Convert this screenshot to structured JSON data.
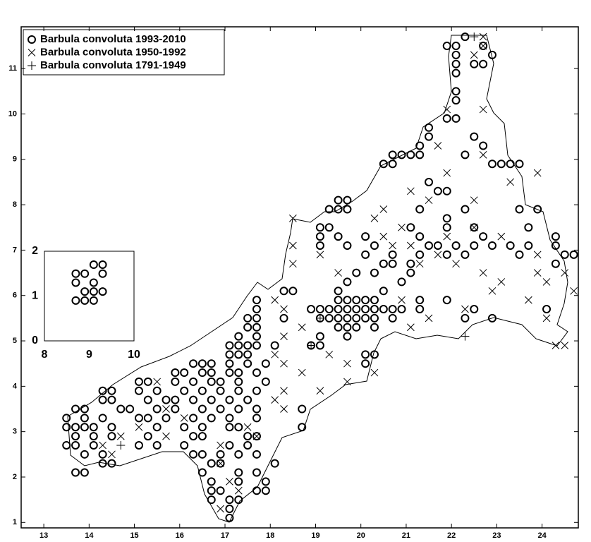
{
  "chart_data": [
    {
      "type": "scatter",
      "xlim": [
        12.5,
        24.8
      ],
      "ylim": [
        0.88,
        11.92
      ],
      "xticks": [
        13,
        14,
        15,
        16,
        17,
        18,
        19,
        20,
        21,
        22,
        23,
        24
      ],
      "yticks": [
        1,
        2,
        3,
        4,
        5,
        6,
        7,
        8,
        9,
        10,
        11
      ],
      "legend": "upper left",
      "series": [
        {
          "name": "Barbula convoluta 1993-2010",
          "color": "#000000",
          "marker": "circle",
          "x": [
            22.3,
            21.9,
            22.1,
            22.7,
            22.1,
            22.9,
            22.1,
            22.5,
            22.7,
            22.1,
            22.1,
            22.1,
            21.9,
            22.1,
            21.5,
            21.5,
            22.5,
            21.3,
            22.7,
            20.7,
            20.9,
            21.1,
            21.3,
            22.3,
            20.5,
            20.7,
            22.9,
            23.1,
            23.3,
            23.5,
            21.5,
            21.7,
            21.9,
            19.5,
            19.7,
            19.3,
            19.5,
            19.7,
            21.3,
            22.3,
            23.5,
            23.9,
            21.9,
            19.1,
            19.3,
            21.1,
            21.9,
            22.5,
            23.7,
            19.1,
            19.5,
            20.1,
            21.3,
            22.7,
            24.3,
            19.1,
            19.7,
            20.3,
            21.5,
            21.7,
            22.1,
            22.5,
            22.9,
            23.3,
            23.7,
            24.3,
            20.1,
            20.7,
            21.3,
            21.9,
            22.3,
            23.5,
            24.5,
            24.7,
            20.5,
            20.7,
            21.1,
            24.3,
            19.9,
            20.3,
            21.1,
            19.7,
            20.9,
            18.3,
            18.5,
            19.5,
            20.5,
            17.7,
            19.5,
            19.7,
            19.9,
            20.1,
            20.3,
            21.3,
            21.9,
            17.7,
            18.9,
            19.1,
            19.3,
            19.5,
            19.7,
            19.9,
            20.1,
            20.3,
            20.5,
            20.7,
            20.9,
            21.3,
            22.5,
            24.1,
            17.5,
            17.7,
            18.3,
            19.1,
            19.3,
            19.5,
            19.7,
            19.9,
            20.1,
            20.3,
            20.7,
            22.3,
            22.9,
            17.5,
            17.7,
            19.5,
            19.7,
            19.9,
            20.3,
            17.3,
            17.7,
            19.1,
            19.7,
            17.1,
            17.3,
            17.5,
            17.7,
            18.1,
            18.9,
            19.1,
            17.1,
            17.3,
            17.5,
            20.1,
            20.3,
            16.3,
            16.5,
            16.7,
            17.1,
            17.5,
            17.9,
            20.1,
            15.9,
            16.1,
            16.5,
            16.7,
            17.1,
            17.3,
            17.7,
            15.1,
            15.3,
            15.9,
            16.3,
            16.7,
            16.9,
            17.3,
            17.9,
            14.3,
            14.5,
            15.1,
            15.5,
            16.1,
            16.5,
            16.9,
            17.3,
            17.7,
            14.3,
            14.5,
            15.3,
            15.7,
            15.9,
            16.3,
            16.7,
            17.1,
            17.5,
            13.7,
            13.9,
            14.7,
            14.9,
            15.5,
            15.9,
            16.5,
            16.9,
            17.3,
            17.7,
            18.7,
            13.5,
            13.9,
            14.3,
            15.1,
            15.3,
            15.7,
            16.3,
            16.7,
            17.1,
            17.7,
            13.5,
            13.7,
            13.9,
            14.1,
            14.5,
            15.5,
            16.1,
            16.5,
            17.1,
            17.3,
            18.7,
            13.7,
            14.1,
            14.5,
            15.3,
            16.3,
            16.5,
            17.5,
            17.7,
            13.5,
            13.7,
            14.1,
            15.1,
            15.5,
            16.1,
            17.1,
            17.5,
            13.9,
            14.3,
            16.3,
            16.5,
            16.9,
            17.3,
            17.7,
            14.3,
            14.5,
            16.7,
            16.9,
            18.1,
            13.7,
            13.9,
            16.5,
            17.3,
            17.7,
            16.7,
            17.3,
            17.9,
            16.7,
            16.9,
            17.7,
            17.9,
            16.7,
            17.1,
            17.3,
            17.1,
            17.1
          ],
          "values": [
            11.7,
            11.5,
            11.5,
            11.5,
            11.3,
            11.3,
            11.1,
            11.1,
            11.1,
            10.9,
            10.5,
            10.3,
            9.9,
            9.9,
            9.7,
            9.5,
            9.5,
            9.3,
            9.3,
            9.1,
            9.1,
            9.1,
            9.1,
            9.1,
            8.9,
            8.9,
            8.9,
            8.9,
            8.9,
            8.9,
            8.5,
            8.3,
            8.3,
            8.1,
            8.1,
            7.9,
            7.9,
            7.9,
            7.9,
            7.9,
            7.9,
            7.9,
            7.7,
            7.5,
            7.5,
            7.5,
            7.5,
            7.5,
            7.5,
            7.3,
            7.3,
            7.3,
            7.3,
            7.3,
            7.3,
            7.1,
            7.1,
            7.1,
            7.1,
            7.1,
            7.1,
            7.1,
            7.1,
            7.1,
            7.1,
            7.1,
            6.9,
            6.9,
            6.9,
            6.9,
            6.9,
            6.9,
            6.9,
            6.9,
            6.7,
            6.7,
            6.7,
            6.7,
            6.5,
            6.5,
            6.5,
            6.3,
            6.3,
            6.1,
            6.1,
            6.1,
            6.1,
            5.9,
            5.9,
            5.9,
            5.9,
            5.9,
            5.9,
            5.9,
            5.9,
            5.7,
            5.7,
            5.7,
            5.7,
            5.7,
            5.7,
            5.7,
            5.7,
            5.7,
            5.7,
            5.7,
            5.7,
            5.7,
            5.7,
            5.7,
            5.5,
            5.5,
            5.5,
            5.5,
            5.5,
            5.5,
            5.5,
            5.5,
            5.5,
            5.5,
            5.5,
            5.5,
            5.5,
            5.3,
            5.3,
            5.3,
            5.3,
            5.3,
            5.3,
            5.1,
            5.1,
            5.1,
            5.1,
            4.9,
            4.9,
            4.9,
            4.9,
            4.9,
            4.9,
            4.9,
            4.7,
            4.7,
            4.7,
            4.7,
            4.7,
            4.5,
            4.5,
            4.5,
            4.5,
            4.5,
            4.5,
            4.5,
            4.3,
            4.3,
            4.3,
            4.3,
            4.3,
            4.3,
            4.3,
            4.1,
            4.1,
            4.1,
            4.1,
            4.1,
            4.1,
            4.1,
            4.1,
            3.9,
            3.9,
            3.9,
            3.9,
            3.9,
            3.9,
            3.9,
            3.9,
            3.9,
            3.7,
            3.7,
            3.7,
            3.7,
            3.7,
            3.7,
            3.7,
            3.7,
            3.7,
            3.5,
            3.5,
            3.5,
            3.5,
            3.5,
            3.5,
            3.5,
            3.5,
            3.5,
            3.5,
            3.5,
            3.3,
            3.3,
            3.3,
            3.3,
            3.3,
            3.3,
            3.3,
            3.3,
            3.3,
            3.3,
            3.1,
            3.1,
            3.1,
            3.1,
            3.1,
            3.1,
            3.1,
            3.1,
            3.1,
            3.1,
            3.1,
            2.9,
            2.9,
            2.9,
            2.9,
            2.9,
            2.9,
            2.9,
            2.9,
            2.7,
            2.7,
            2.7,
            2.7,
            2.7,
            2.7,
            2.7,
            2.7,
            2.5,
            2.5,
            2.5,
            2.5,
            2.5,
            2.5,
            2.5,
            2.3,
            2.3,
            2.3,
            2.3,
            2.3,
            2.1,
            2.1,
            2.1,
            2.1,
            2.1,
            1.9,
            1.9,
            1.9,
            1.7,
            1.7,
            1.7,
            1.7,
            1.5,
            1.5,
            1.5,
            1.3,
            1.1
          ]
        },
        {
          "name": "Barbula convoluta 1950-1992",
          "color": "#000000",
          "marker": "cross",
          "x": [
            22.7,
            22.7,
            22.5,
            21.9,
            22.7,
            21.7,
            22.7,
            21.9,
            23.9,
            23.3,
            21.1,
            21.5,
            22.5,
            20.5,
            18.5,
            20.3,
            20.9,
            22.5,
            20.5,
            21.9,
            23.1,
            18.5,
            20.7,
            21.1,
            19.1,
            21.7,
            23.9,
            18.5,
            21.3,
            22.1,
            19.5,
            22.7,
            23.9,
            24.5,
            23.1,
            24.1,
            22.9,
            24.7,
            18.1,
            20.9,
            23.7,
            18.3,
            22.3,
            21.5,
            24.1,
            18.7,
            21.1,
            18.3,
            24.3,
            24.5,
            18.1,
            19.3,
            18.3,
            19.7,
            18.7,
            20.3,
            15.5,
            19.7,
            18.3,
            19.1,
            18.1,
            15.7,
            18.3,
            16.1,
            15.1,
            17.5,
            14.7,
            15.7,
            17.7,
            14.3,
            16.9,
            14.5,
            16.9,
            17.1,
            17.3,
            16.9
          ],
          "values": [
            11.7,
            11.5,
            11.3,
            10.1,
            10.1,
            9.3,
            9.1,
            8.7,
            8.7,
            8.5,
            8.3,
            8.1,
            8.1,
            7.9,
            7.7,
            7.7,
            7.5,
            7.5,
            7.3,
            7.3,
            7.3,
            7.1,
            7.1,
            7.1,
            6.9,
            6.9,
            6.9,
            6.7,
            6.7,
            6.7,
            6.5,
            6.5,
            6.5,
            6.5,
            6.3,
            6.3,
            6.1,
            6.1,
            5.9,
            5.9,
            5.9,
            5.7,
            5.7,
            5.5,
            5.5,
            5.3,
            5.3,
            5.1,
            4.9,
            4.9,
            4.7,
            4.7,
            4.5,
            4.5,
            4.3,
            4.3,
            4.1,
            4.1,
            3.9,
            3.9,
            3.7,
            3.5,
            3.5,
            3.3,
            3.1,
            3.1,
            2.9,
            2.9,
            2.9,
            2.7,
            2.7,
            2.5,
            2.3,
            1.9,
            1.7,
            1.3
          ]
        },
        {
          "name": "Barbula convoluta 1791-1949",
          "color": "#000000",
          "marker": "plus",
          "x": [
            22.5,
            22.3,
            18.9,
            14.7,
            19.1
          ],
          "values": [
            11.7,
            5.1,
            4.9,
            2.7,
            5.5
          ]
        }
      ]
    },
    {
      "type": "scatter",
      "xlim": [
        8,
        10
      ],
      "ylim": [
        0,
        2
      ],
      "xticks": [
        8,
        9,
        10
      ],
      "yticks": [
        0,
        1,
        2
      ],
      "series": [
        {
          "color": "#000000",
          "marker": "circle",
          "x": [
            8.7,
            8.9,
            9.1,
            9.3,
            8.7,
            9.1,
            9.3,
            8.9,
            9.1,
            9.3,
            8.7,
            8.9,
            9.1
          ],
          "values": [
            1.5,
            1.5,
            1.7,
            1.7,
            1.3,
            1.3,
            1.5,
            1.1,
            1.1,
            1.1,
            0.9,
            0.9,
            0.9
          ]
        }
      ]
    }
  ]
}
